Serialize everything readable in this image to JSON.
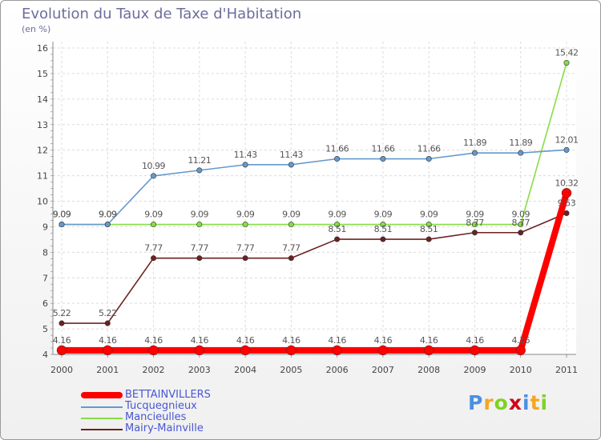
{
  "chart_data": {
    "type": "line",
    "title": "Evolution du Taux de Taxe d'Habitation",
    "unit": "(en %)",
    "x": [
      "2000",
      "2001",
      "2002",
      "2003",
      "2004",
      "2005",
      "2006",
      "2007",
      "2008",
      "2009",
      "2010",
      "2011"
    ],
    "ylim": [
      4,
      16
    ],
    "yticks": [
      "4",
      "5",
      "6",
      "7",
      "8",
      "9",
      "10",
      "11",
      "12",
      "13",
      "14",
      "15",
      "16"
    ],
    "grid": true,
    "legend_position": "bottom-left",
    "series": [
      {
        "name": "BETTAINVILLERS",
        "color": "#ff0000",
        "values": [
          4.16,
          4.16,
          4.16,
          4.16,
          4.16,
          4.16,
          4.16,
          4.16,
          4.16,
          4.16,
          4.16,
          10.32
        ],
        "labels": [
          "4.16",
          "4.16",
          "4.16",
          "4.16",
          "4.16",
          "4.16",
          "4.16",
          "4.16",
          "4.16",
          "4.16",
          "4.16",
          "10.32"
        ]
      },
      {
        "name": "Tucquegnieux",
        "color": "#6699cc",
        "values": [
          9.09,
          9.09,
          10.99,
          11.21,
          11.43,
          11.43,
          11.66,
          11.66,
          11.66,
          11.89,
          11.89,
          12.01
        ],
        "labels": [
          "9.09",
          "9.09",
          "10.99",
          "11.21",
          "11.43",
          "11.43",
          "11.66",
          "11.66",
          "11.66",
          "11.89",
          "11.89",
          "12.01"
        ]
      },
      {
        "name": "Mancieulles",
        "color": "#88dd44",
        "values": [
          9.09,
          9.09,
          9.09,
          9.09,
          9.09,
          9.09,
          9.09,
          9.09,
          9.09,
          9.09,
          9.09,
          15.42
        ],
        "labels": [
          "9.09",
          "9.09",
          "9.09",
          "9.09",
          "9.09",
          "9.09",
          "9.09",
          "9.09",
          "9.09",
          "9.09",
          "9.09",
          "15.42"
        ]
      },
      {
        "name": "Mairy-Mainville",
        "color": "#6b2222",
        "values": [
          5.22,
          5.22,
          7.77,
          7.77,
          7.77,
          7.77,
          8.51,
          8.51,
          8.51,
          8.77,
          8.77,
          9.53
        ],
        "labels": [
          "5.22",
          "5.22",
          "7.77",
          "7.77",
          "7.77",
          "7.77",
          "8.51",
          "8.51",
          "8.51",
          "8.77",
          "8.77",
          "9.53"
        ]
      }
    ]
  },
  "branding": {
    "logo_letters": [
      "P",
      "r",
      "o",
      "x",
      "i",
      "t",
      "i"
    ],
    "logo_colors": [
      "#4a90e2",
      "#f5a623",
      "#7ed321",
      "#d0021b",
      "#4a90e2",
      "#f5a623",
      "#7ed321"
    ]
  }
}
